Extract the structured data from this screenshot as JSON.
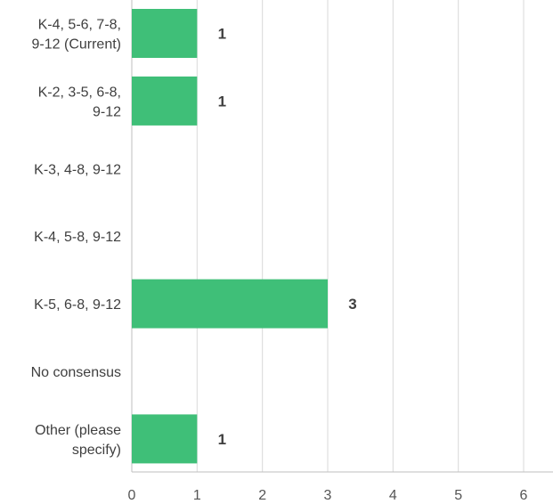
{
  "chart_data": {
    "type": "bar",
    "orientation": "horizontal",
    "categories": [
      [
        "K-4, 5-6, 7-8,",
        "9-12 (Current)"
      ],
      [
        "K-2, 3-5, 6-8,",
        "9-12"
      ],
      [
        "K-3, 4-8, 9-12"
      ],
      [
        "K-4, 5-8, 9-12"
      ],
      [
        "K-5, 6-8, 9-12"
      ],
      [
        "No consensus"
      ],
      [
        "Other (please",
        "specify)"
      ]
    ],
    "values": [
      1,
      1,
      0,
      0,
      3,
      0,
      1
    ],
    "data_labels": [
      "1",
      "1",
      "",
      "",
      "3",
      "",
      "1"
    ],
    "xlim": [
      0,
      6
    ],
    "xticks": [
      "0",
      "1",
      "2",
      "3",
      "4",
      "5",
      "6"
    ],
    "grid": true,
    "bar_color": "#3fbf78"
  }
}
